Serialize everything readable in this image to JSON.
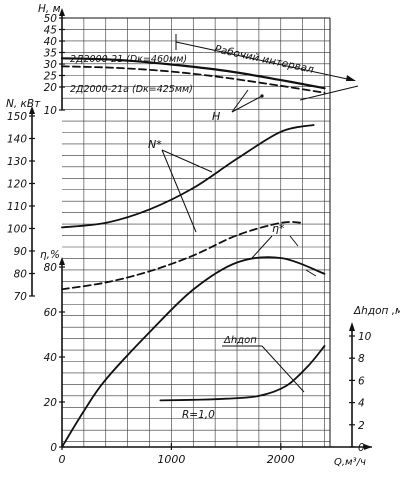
{
  "chart_data": {
    "type": "line",
    "x_axis": {
      "label": "Q,м³/ч",
      "range": [
        0,
        2450
      ],
      "ticks": [
        {
          "value": 0,
          "label": "0"
        },
        {
          "value": 1000,
          "label": "1000"
        },
        {
          "value": 2000,
          "label": "2000"
        }
      ]
    },
    "axes": {
      "H": {
        "label": "H, м",
        "range": [
          10,
          50
        ],
        "ticks": [
          {
            "value": 10,
            "label": "10"
          },
          {
            "value": 20,
            "label": "20"
          },
          {
            "value": 25,
            "label": "25"
          },
          {
            "value": 30,
            "label": "30"
          },
          {
            "value": 35,
            "label": "35"
          },
          {
            "value": 40,
            "label": "40"
          },
          {
            "value": 45,
            "label": "45"
          },
          {
            "value": 50,
            "label": "50"
          }
        ]
      },
      "N": {
        "label": "N, кВт",
        "range": [
          70,
          150
        ],
        "ticks": [
          {
            "value": 70,
            "label": "70"
          },
          {
            "value": 80,
            "label": "80"
          },
          {
            "value": 90,
            "label": "90"
          },
          {
            "value": 100,
            "label": "100"
          },
          {
            "value": 110,
            "label": "110"
          },
          {
            "value": 120,
            "label": "120"
          },
          {
            "value": 130,
            "label": "130"
          },
          {
            "value": 140,
            "label": "140"
          },
          {
            "value": 150,
            "label": "150"
          }
        ]
      },
      "eta": {
        "label": "η,%",
        "range": [
          0,
          80
        ],
        "ticks": [
          {
            "value": 0,
            "label": "0"
          },
          {
            "value": 20,
            "label": "20"
          },
          {
            "value": 40,
            "label": "40"
          },
          {
            "value": 60,
            "label": "60"
          },
          {
            "value": 80,
            "label": "80"
          }
        ]
      },
      "dh": {
        "label": "Δhдоп ,м",
        "range": [
          0,
          10
        ],
        "ticks": [
          {
            "value": 0,
            "label": "0"
          },
          {
            "value": 2,
            "label": "2"
          },
          {
            "value": 4,
            "label": "4"
          },
          {
            "value": 6,
            "label": "6"
          },
          {
            "value": 8,
            "label": "8"
          },
          {
            "value": 10,
            "label": "10"
          }
        ]
      }
    },
    "series": [
      {
        "name": "2Д2000-21 (Dк=460мм)",
        "axis": "H",
        "style": "solid",
        "width": 2.2,
        "x": [
          0,
          500,
          1000,
          1500,
          2000,
          2400
        ],
        "y": [
          32.5,
          31.8,
          29.8,
          27.0,
          23.0,
          19.5
        ]
      },
      {
        "name": "2Д2000-21а (Dк=425мм)",
        "axis": "H",
        "style": "dashed",
        "width": 1.8,
        "x": [
          0,
          500,
          1000,
          1500,
          2000,
          2400
        ],
        "y": [
          29.0,
          28.3,
          26.7,
          24.0,
          20.5,
          17.5
        ]
      },
      {
        "name": "N*",
        "axis": "N",
        "style": "solid",
        "width": 1.8,
        "x": [
          0,
          400,
          800,
          1200,
          1600,
          2000,
          2300
        ],
        "y": [
          100.5,
          102.5,
          108.5,
          118.0,
          131.0,
          143.0,
          146.0
        ]
      },
      {
        "name": "N*",
        "axis": "N",
        "style": "dashed",
        "width": 1.8,
        "x": [
          0,
          400,
          800,
          1200,
          1600,
          2000,
          2200
        ],
        "y": [
          73.0,
          76.0,
          81.0,
          88.0,
          97.0,
          102.5,
          102.5
        ]
      },
      {
        "name": "η*",
        "axis": "eta",
        "style": "solid",
        "width": 1.8,
        "x": [
          0,
          200,
          400,
          800,
          1200,
          1600,
          2000,
          2400
        ],
        "y": [
          0,
          16,
          30,
          51,
          70,
          82,
          84,
          77
        ]
      },
      {
        "name": "Δhдоп",
        "axis": "dh",
        "style": "solid",
        "width": 1.8,
        "x": [
          900,
          1200,
          1500,
          1800,
          2050,
          2250,
          2400
        ],
        "y": [
          4.2,
          4.25,
          4.35,
          4.6,
          5.5,
          7.3,
          9.1
        ]
      }
    ],
    "annotations": [
      {
        "text": "Рабочий интервал"
      },
      {
        "text": "H"
      },
      {
        "text": "N*"
      },
      {
        "text": "η*"
      },
      {
        "text": "Δhдоп"
      },
      {
        "text": "R=1,0"
      }
    ]
  }
}
